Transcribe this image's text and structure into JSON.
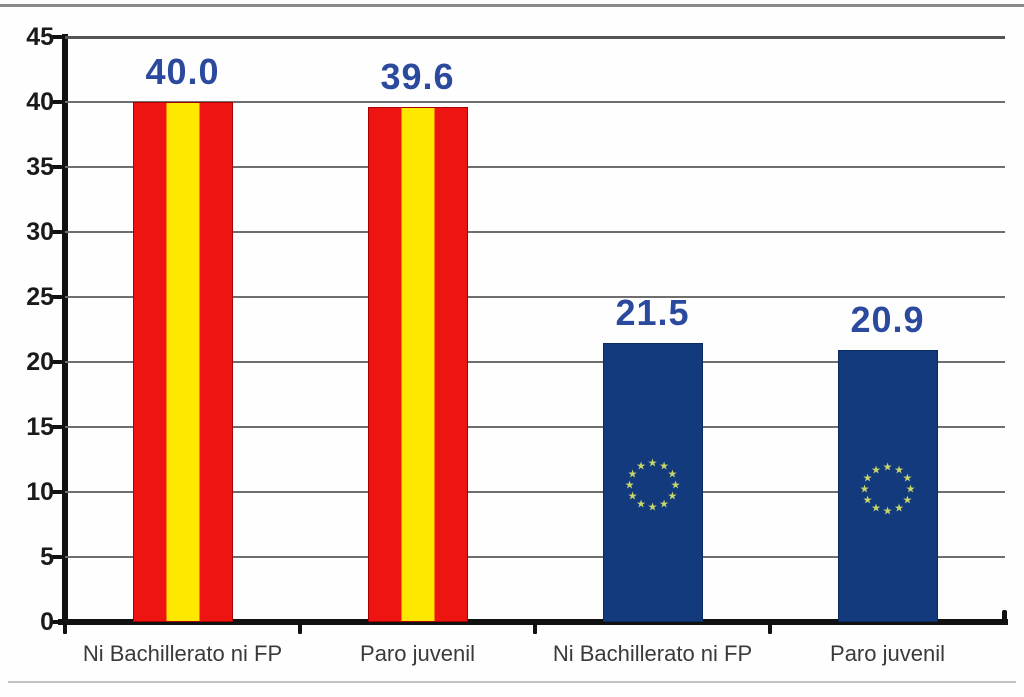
{
  "chart_data": {
    "type": "bar",
    "title": "",
    "categories": [
      "Ni Bachillerato ni FP",
      "Paro juvenil",
      "Ni Bachillerato ni FP",
      "Paro juvenil"
    ],
    "values": [
      40.0,
      39.6,
      21.5,
      20.9
    ],
    "value_labels": [
      "40.0",
      "39.6",
      "21.5",
      "20.9"
    ],
    "series_of_bar": [
      "spain",
      "spain",
      "eu",
      "eu"
    ],
    "series_styles": {
      "spain": "vertical red-yellow-red stripes (Spanish flag)",
      "eu": "solid navy with circle of 12 yellow stars (EU flag emblem)"
    },
    "ylabel": "",
    "xlabel": "",
    "ylim": [
      0,
      45
    ],
    "ytick_labels": [
      "45",
      "40",
      "35",
      "30",
      "25",
      "20",
      "15",
      "10",
      "5",
      "0"
    ],
    "grid": true,
    "legend_position": "none"
  },
  "colors": {
    "spain_red": "#EE1411",
    "spain_yellow": "#FFE800",
    "spain_border": "#A80000",
    "eu_blue": "#123A7D",
    "eu_star": "#C8D66A",
    "value_label": "#2B4A9E",
    "gridline": "#6E6E6E",
    "axis": "#111111",
    "tick_label": "#1A1A1A",
    "x_label": "#3A3A3A",
    "frame_top": "#8A8A8A",
    "frame_bottom": "#C2C2C2"
  }
}
